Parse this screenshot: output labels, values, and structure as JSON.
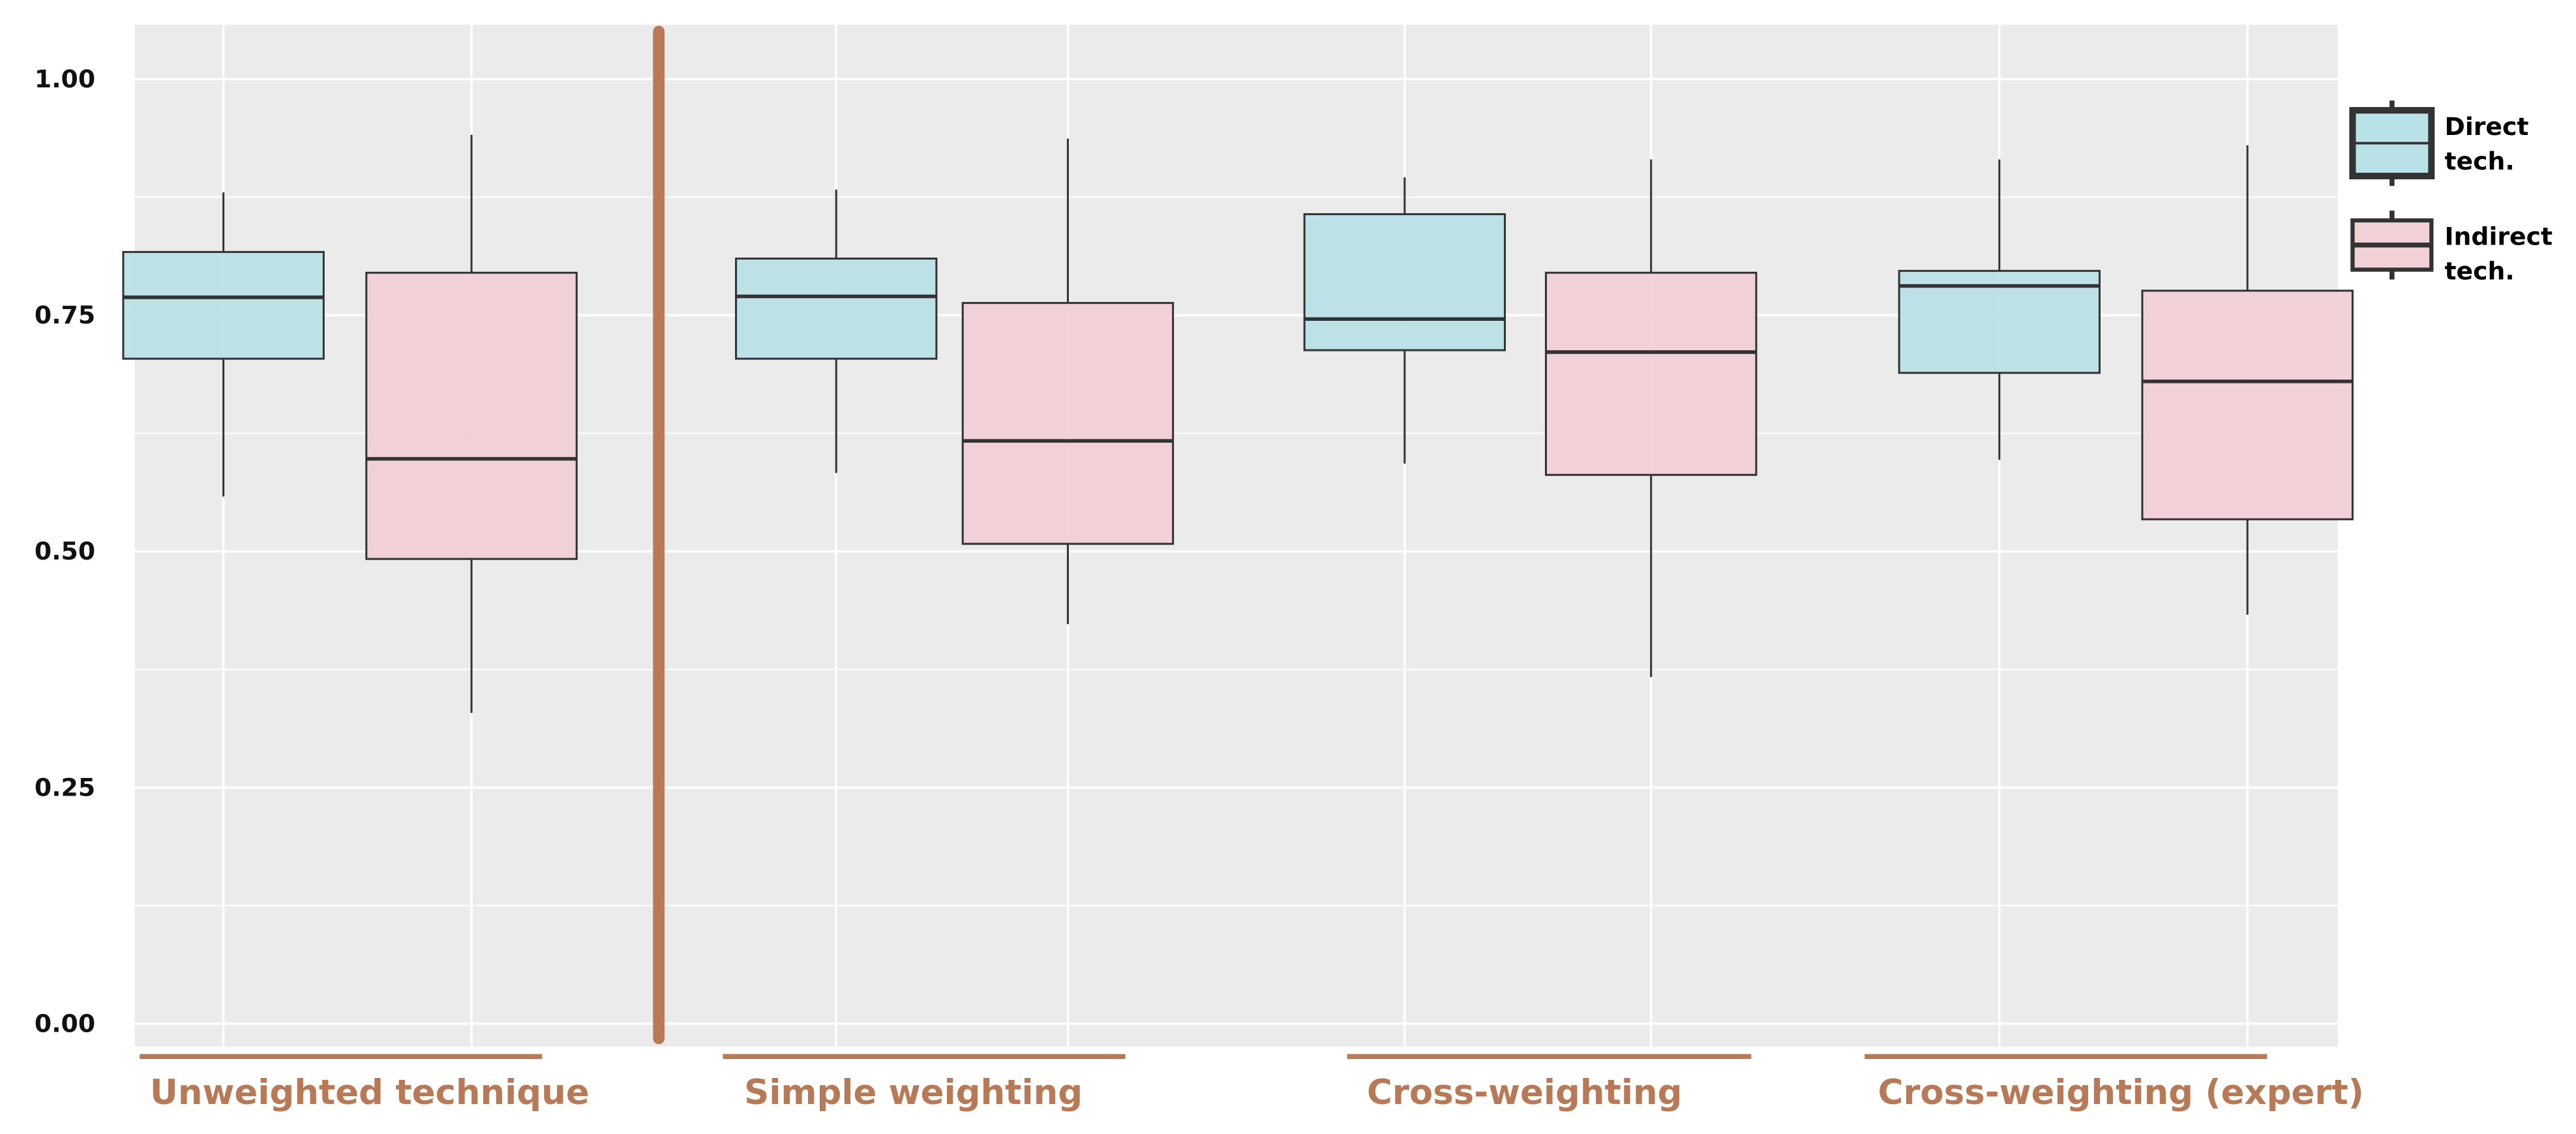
{
  "chart_data": {
    "type": "boxplot",
    "title": "",
    "xlabel": "",
    "ylabel": "",
    "ylim": [
      0,
      1
    ],
    "y_ticks": [
      "0.00",
      "0.25",
      "0.50",
      "0.75",
      "1.00"
    ],
    "grid": true,
    "legend_placement": "right",
    "groups": [
      "Unweighted technique",
      "Simple weighting",
      "Cross-weighting",
      "Cross-weighting (expert)"
    ],
    "series": [
      {
        "name": "Direct tech.",
        "color": "#B9E1E8",
        "boxes": [
          {
            "low": 0.558,
            "q1": 0.704,
            "median": 0.769,
            "q3": 0.817,
            "high": 0.88
          },
          {
            "low": 0.583,
            "q1": 0.704,
            "median": 0.77,
            "q3": 0.81,
            "high": 0.883
          },
          {
            "low": 0.593,
            "q1": 0.713,
            "median": 0.746,
            "q3": 0.857,
            "high": 0.896
          },
          {
            "low": 0.597,
            "q1": 0.689,
            "median": 0.781,
            "q3": 0.797,
            "high": 0.915
          }
        ]
      },
      {
        "name": "Indirect tech.",
        "color": "#F1D0D6",
        "boxes": [
          {
            "low": 0.329,
            "q1": 0.492,
            "median": 0.598,
            "q3": 0.795,
            "high": 0.941
          },
          {
            "low": 0.423,
            "q1": 0.508,
            "median": 0.617,
            "q3": 0.763,
            "high": 0.937
          },
          {
            "low": 0.367,
            "q1": 0.581,
            "median": 0.711,
            "q3": 0.795,
            "high": 0.915
          },
          {
            "low": 0.433,
            "q1": 0.534,
            "median": 0.68,
            "q3": 0.776,
            "high": 0.93
          }
        ]
      }
    ],
    "legend": [
      {
        "line1": "Direct",
        "line2": "tech."
      },
      {
        "line1": "Indirect",
        "line2": "tech."
      }
    ],
    "accent_color": "#B87A56",
    "panel_color": "#EBEBEB"
  }
}
